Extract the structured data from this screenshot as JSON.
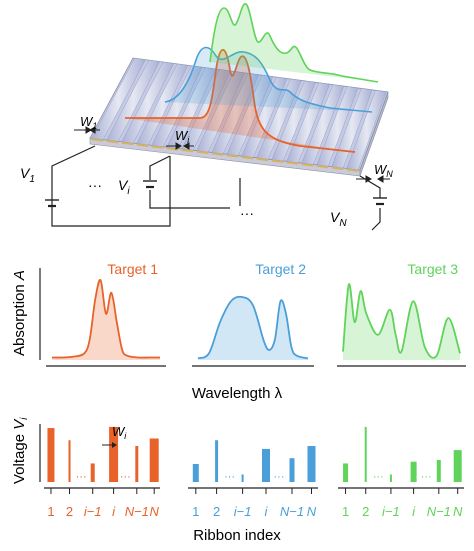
{
  "colors": {
    "orange": "#e8622a",
    "blue": "#4a9fd8",
    "green": "#5fd35a",
    "ribbon_fill": "#b6bddc",
    "ribbon_light": "#e4e6f0",
    "ribbon_edge": "#8c95bd",
    "gold": "#d8b060",
    "ink": "#222222"
  },
  "device": {
    "labels": {
      "w1": "W",
      "w1_sub": "1",
      "wi": "W",
      "wi_sub": "i",
      "wn": "W",
      "wn_sub": "N",
      "v1": "V",
      "v1_sub": "1",
      "vi": "V",
      "vi_sub": "i",
      "vn": "V",
      "vn_sub": "N",
      "dots_a": "···",
      "dots_b": "···"
    }
  },
  "absorption": {
    "ylabel": "Absorption",
    "ylabel_var": "A",
    "xlabel": "Wavelength λ",
    "targets": [
      {
        "label": "Target 1",
        "color": "#e8622a"
      },
      {
        "label": "Target 2",
        "color": "#4a9fd8"
      },
      {
        "label": "Target 3",
        "color": "#5fd35a"
      }
    ]
  },
  "voltage": {
    "ylabel": "Voltage",
    "ylabel_var": "V",
    "ylabel_sub": "i",
    "xlabel": "Ribbon index",
    "width_label": "W",
    "width_label_sub": "i",
    "tick_labels": [
      "1",
      "2",
      "i−1",
      "i",
      "N−1",
      "N"
    ],
    "groups": [
      {
        "color": "#e8622a",
        "values": [
          0.93,
          0.72,
          0.32,
          0.95,
          0.62,
          0.75
        ]
      },
      {
        "color": "#4a9fd8",
        "values": [
          0.31,
          0.72,
          0.13,
          0.57,
          0.41,
          0.62
        ]
      },
      {
        "color": "#5fd35a",
        "values": [
          0.32,
          0.95,
          0.13,
          0.35,
          0.38,
          0.55
        ]
      }
    ]
  },
  "chart_data": [
    {
      "type": "area",
      "title": "Target 1",
      "xlabel": "Wavelength λ",
      "ylabel": "Absorption A",
      "x": [
        0.0,
        0.1,
        0.2,
        0.3,
        0.35,
        0.4,
        0.45,
        0.5,
        0.55,
        0.6,
        0.65,
        0.7,
        0.8,
        0.9,
        1.0
      ],
      "y": [
        0.03,
        0.03,
        0.04,
        0.08,
        0.25,
        0.72,
        0.95,
        0.55,
        0.8,
        0.45,
        0.12,
        0.05,
        0.03,
        0.03,
        0.03
      ]
    },
    {
      "type": "area",
      "title": "Target 2",
      "xlabel": "Wavelength λ",
      "ylabel": "Absorption A",
      "x": [
        0.0,
        0.1,
        0.2,
        0.3,
        0.4,
        0.5,
        0.6,
        0.65,
        0.7,
        0.75,
        0.8,
        0.85,
        0.9,
        1.0
      ],
      "y": [
        0.02,
        0.08,
        0.45,
        0.7,
        0.75,
        0.65,
        0.22,
        0.12,
        0.25,
        0.7,
        0.55,
        0.15,
        0.05,
        0.02
      ]
    },
    {
      "type": "area",
      "title": "Target 3",
      "xlabel": "Wavelength λ",
      "ylabel": "Absorption A",
      "x": [
        0.0,
        0.05,
        0.1,
        0.15,
        0.2,
        0.3,
        0.4,
        0.45,
        0.5,
        0.6,
        0.7,
        0.8,
        0.9,
        1.0
      ],
      "y": [
        0.1,
        0.9,
        0.45,
        0.82,
        0.55,
        0.3,
        0.6,
        0.3,
        0.1,
        0.7,
        0.15,
        0.05,
        0.5,
        0.08
      ]
    }
  ]
}
